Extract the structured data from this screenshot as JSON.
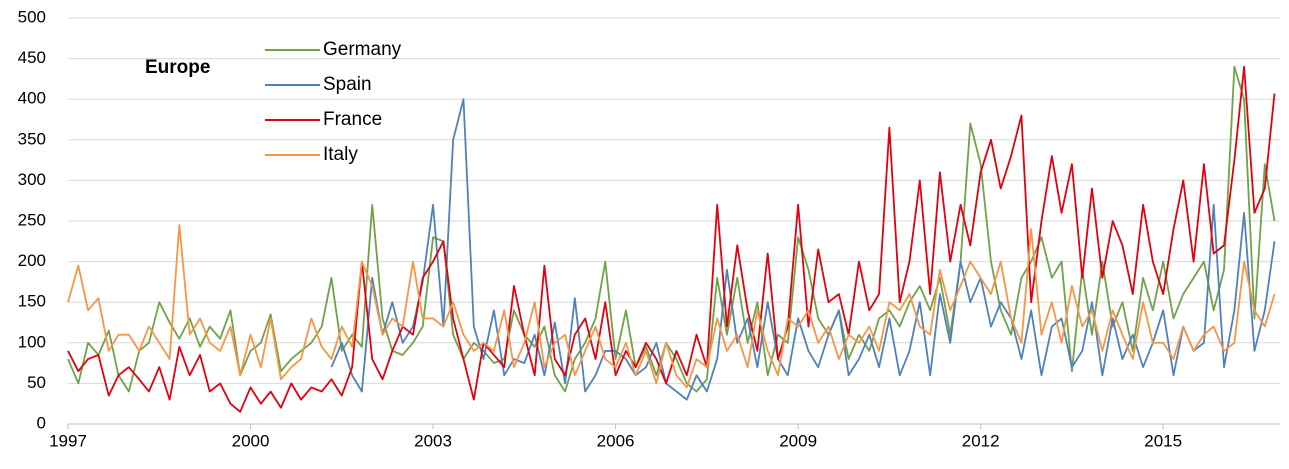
{
  "chart_data": {
    "type": "line",
    "title": "Europe",
    "x": [
      1997,
      1997.17,
      1997.33,
      1997.5,
      1997.67,
      1997.83,
      1998,
      1998.17,
      1998.33,
      1998.5,
      1998.67,
      1998.83,
      1999,
      1999.17,
      1999.33,
      1999.5,
      1999.67,
      1999.83,
      2000,
      2000.17,
      2000.33,
      2000.5,
      2000.67,
      2000.83,
      2001,
      2001.17,
      2001.33,
      2001.5,
      2001.67,
      2001.83,
      2002,
      2002.17,
      2002.33,
      2002.5,
      2002.67,
      2002.83,
      2003,
      2003.17,
      2003.33,
      2003.5,
      2003.67,
      2003.83,
      2004,
      2004.17,
      2004.33,
      2004.5,
      2004.67,
      2004.83,
      2005,
      2005.17,
      2005.33,
      2005.5,
      2005.67,
      2005.83,
      2006,
      2006.17,
      2006.33,
      2006.5,
      2006.67,
      2006.83,
      2007,
      2007.17,
      2007.33,
      2007.5,
      2007.67,
      2007.83,
      2008,
      2008.17,
      2008.33,
      2008.5,
      2008.67,
      2008.83,
      2009,
      2009.17,
      2009.33,
      2009.5,
      2009.67,
      2009.83,
      2010,
      2010.17,
      2010.33,
      2010.5,
      2010.67,
      2010.83,
      2011,
      2011.17,
      2011.33,
      2011.5,
      2011.67,
      2011.83,
      2012,
      2012.17,
      2012.33,
      2012.5,
      2012.67,
      2012.83,
      2013,
      2013.17,
      2013.33,
      2013.5,
      2013.67,
      2013.83,
      2014,
      2014.17,
      2014.33,
      2014.5,
      2014.67,
      2014.83,
      2015,
      2015.17,
      2015.33,
      2015.5,
      2015.67,
      2015.83,
      2016,
      2016.17,
      2016.33,
      2016.5,
      2016.67,
      2016.83
    ],
    "series": [
      {
        "name": "Germany",
        "color": "#70a347",
        "values": [
          80,
          50,
          100,
          85,
          115,
          60,
          40,
          90,
          100,
          150,
          125,
          105,
          130,
          95,
          120,
          105,
          140,
          60,
          90,
          100,
          135,
          65,
          80,
          90,
          100,
          120,
          180,
          90,
          110,
          95,
          270,
          130,
          90,
          85,
          100,
          120,
          230,
          225,
          110,
          80,
          100,
          90,
          75,
          80,
          140,
          110,
          95,
          120,
          60,
          40,
          80,
          100,
          130,
          200,
          80,
          140,
          70,
          95,
          60,
          100,
          80,
          50,
          40,
          55,
          180,
          110,
          180,
          100,
          150,
          60,
          110,
          100,
          230,
          190,
          130,
          110,
          140,
          80,
          110,
          90,
          130,
          140,
          120,
          150,
          170,
          140,
          180,
          110,
          200,
          370,
          320,
          200,
          140,
          110,
          180,
          200,
          230,
          180,
          200,
          65,
          190,
          110,
          200,
          120,
          150,
          90,
          180,
          140,
          200,
          130,
          160,
          180,
          200,
          140,
          190,
          440,
          400,
          130,
          320,
          250
        ]
      },
      {
        "name": "Spain",
        "color": "#4f81bd",
        "values": [
          null,
          null,
          null,
          null,
          null,
          null,
          null,
          null,
          null,
          null,
          null,
          null,
          null,
          null,
          null,
          null,
          null,
          null,
          null,
          null,
          null,
          null,
          null,
          null,
          null,
          null,
          70,
          100,
          60,
          40,
          180,
          110,
          150,
          100,
          120,
          175,
          270,
          120,
          350,
          400,
          120,
          80,
          140,
          60,
          80,
          75,
          110,
          60,
          125,
          50,
          155,
          40,
          60,
          90,
          90,
          80,
          60,
          70,
          100,
          50,
          40,
          30,
          60,
          40,
          80,
          190,
          100,
          130,
          70,
          150,
          80,
          60,
          130,
          90,
          70,
          110,
          140,
          60,
          80,
          110,
          70,
          130,
          60,
          90,
          150,
          60,
          160,
          100,
          200,
          150,
          180,
          120,
          150,
          130,
          80,
          140,
          60,
          120,
          130,
          70,
          90,
          150,
          60,
          130,
          80,
          110,
          70,
          100,
          140,
          60,
          120,
          90,
          100,
          270,
          70,
          140,
          260,
          90,
          140,
          225
        ]
      },
      {
        "name": "France",
        "color": "#e3000f",
        "values": [
          90,
          65,
          80,
          85,
          35,
          60,
          70,
          55,
          40,
          70,
          30,
          95,
          60,
          85,
          40,
          50,
          25,
          15,
          45,
          25,
          40,
          20,
          50,
          30,
          45,
          40,
          55,
          35,
          70,
          200,
          80,
          55,
          90,
          120,
          110,
          180,
          200,
          225,
          130,
          80,
          30,
          100,
          85,
          70,
          170,
          110,
          60,
          195,
          80,
          60,
          110,
          130,
          80,
          150,
          60,
          90,
          70,
          100,
          80,
          50,
          90,
          60,
          110,
          70,
          270,
          120,
          220,
          140,
          90,
          210,
          80,
          120,
          270,
          120,
          215,
          150,
          160,
          110,
          200,
          140,
          160,
          365,
          150,
          200,
          300,
          160,
          310,
          200,
          270,
          220,
          310,
          350,
          290,
          330,
          380,
          150,
          250,
          330,
          260,
          320,
          180,
          290,
          180,
          250,
          220,
          160,
          270,
          200,
          160,
          240,
          300,
          200,
          320,
          210,
          220,
          325,
          440,
          260,
          290,
          407
        ]
      },
      {
        "name": "Italy",
        "color": "#f79646",
        "values": [
          150,
          195,
          140,
          155,
          90,
          110,
          110,
          90,
          120,
          100,
          80,
          245,
          110,
          130,
          100,
          90,
          120,
          60,
          110,
          70,
          130,
          55,
          70,
          80,
          130,
          95,
          80,
          120,
          95,
          200,
          170,
          110,
          130,
          120,
          200,
          130,
          130,
          120,
          150,
          110,
          90,
          100,
          90,
          140,
          70,
          100,
          150,
          70,
          100,
          110,
          60,
          90,
          120,
          80,
          70,
          100,
          60,
          90,
          50,
          100,
          60,
          45,
          80,
          70,
          130,
          90,
          110,
          70,
          140,
          90,
          60,
          130,
          120,
          140,
          100,
          120,
          80,
          110,
          100,
          120,
          90,
          150,
          140,
          160,
          120,
          110,
          190,
          140,
          170,
          200,
          180,
          160,
          200,
          130,
          100,
          240,
          110,
          150,
          100,
          170,
          120,
          140,
          90,
          140,
          110,
          80,
          150,
          100,
          100,
          80,
          120,
          90,
          110,
          120,
          90,
          100,
          200,
          140,
          120,
          160
        ]
      }
    ],
    "xlim": [
      1997,
      2016.92
    ],
    "xticks": [
      1997,
      2000,
      2003,
      2006,
      2009,
      2012,
      2015
    ],
    "ylim": [
      0,
      500
    ],
    "yticks": [
      0,
      50,
      100,
      150,
      200,
      250,
      300,
      350,
      400,
      450,
      500
    ],
    "grid": true
  }
}
